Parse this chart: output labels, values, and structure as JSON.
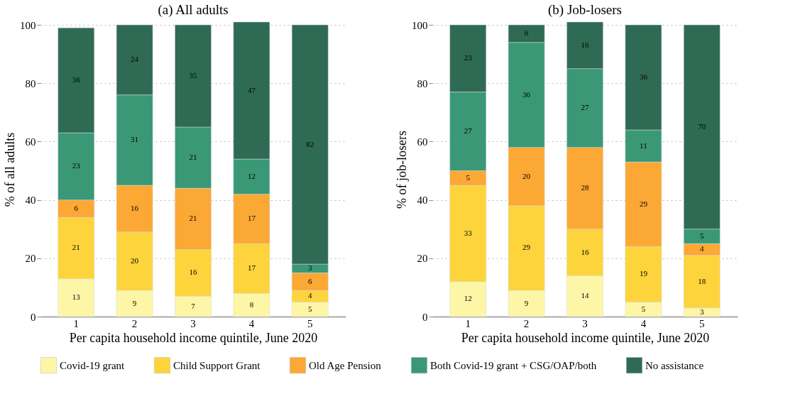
{
  "chart_data": [
    {
      "type": "bar",
      "title": "(a) All adults",
      "xlabel": "Per capita household income quintile, June 2020",
      "ylabel": "% of all adults",
      "categories": [
        "1",
        "2",
        "3",
        "4",
        "5"
      ],
      "stacked": true,
      "data_labels": true,
      "ylim": [
        0,
        101
      ],
      "yticks": [
        0,
        20,
        40,
        60,
        80,
        100
      ],
      "grid": "y",
      "legend": "bottom",
      "series": [
        {
          "name": "Covid-19 grant",
          "color": "#fdf6a6",
          "values": [
            13,
            9,
            7,
            8,
            5
          ]
        },
        {
          "name": "Child Support Grant",
          "color": "#fdd43b",
          "values": [
            21,
            20,
            16,
            17,
            4
          ]
        },
        {
          "name": "Old Age Pension",
          "color": "#fca834",
          "values": [
            6,
            16,
            21,
            17,
            6
          ]
        },
        {
          "name": "Both Covid-19 grant + CSG/OAP/both",
          "color": "#3a9877",
          "values": [
            23,
            31,
            21,
            12,
            3
          ]
        },
        {
          "name": "No assistance",
          "color": "#2f6a55",
          "values": [
            36,
            24,
            35,
            47,
            82
          ]
        }
      ]
    },
    {
      "type": "bar",
      "title": "(b) Job-losers",
      "xlabel": "Per capita household income quintile, June 2020",
      "ylabel": "% of job-losers",
      "categories": [
        "1",
        "2",
        "3",
        "4",
        "5"
      ],
      "stacked": true,
      "data_labels": true,
      "ylim": [
        0,
        101
      ],
      "yticks": [
        0,
        20,
        40,
        60,
        80,
        100
      ],
      "grid": "y",
      "legend": false,
      "series": [
        {
          "name": "Covid-19 grant",
          "color": "#fdf6a6",
          "values": [
            12,
            9,
            14,
            5,
            3
          ]
        },
        {
          "name": "Child Support Grant",
          "color": "#fdd43b",
          "values": [
            33,
            29,
            16,
            19,
            18
          ]
        },
        {
          "name": "Old Age Pension",
          "color": "#fca834",
          "values": [
            5,
            20,
            28,
            29,
            4
          ]
        },
        {
          "name": "Both Covid-19 grant + CSG/OAP/both",
          "color": "#3a9877",
          "values": [
            27,
            36,
            27,
            11,
            5
          ]
        },
        {
          "name": "No assistance",
          "color": "#2f6a55",
          "values": [
            23,
            6,
            16,
            36,
            70
          ]
        }
      ]
    }
  ]
}
